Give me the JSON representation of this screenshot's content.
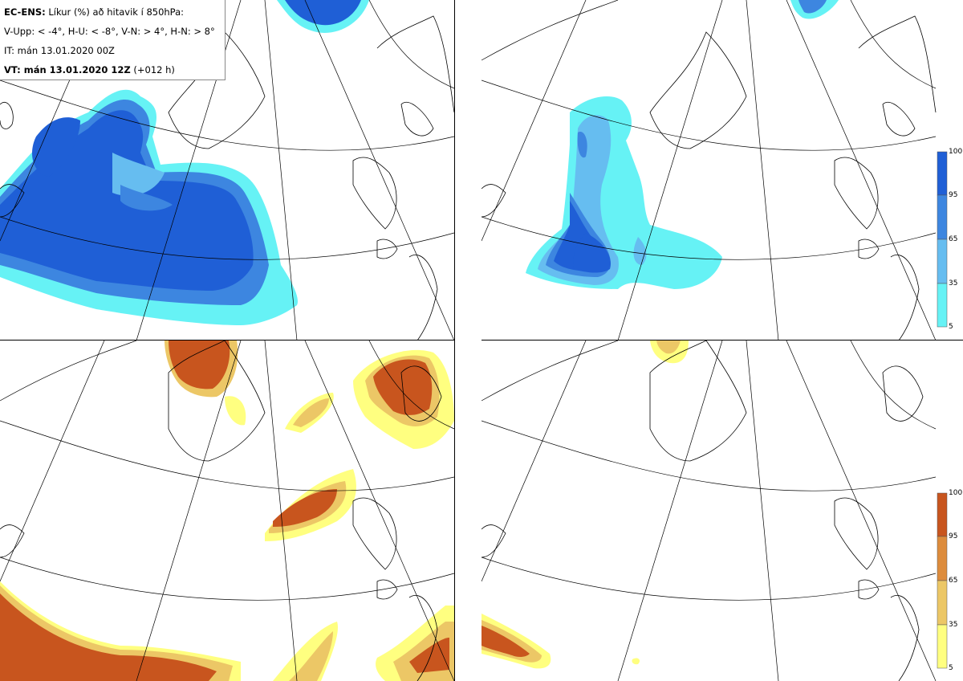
{
  "header": {
    "model": "EC-ENS:",
    "title_rest": " Líkur (%) að hitavik í 850hPa:",
    "thresholds": "V-Upp: < -4°, H-U: < -8°, V-N: > 4°, H-N: > 8°",
    "init_time": "IT: mán 13.01.2020 00Z",
    "valid_prefix": "VT: mán 13.01.2020 12Z",
    "valid_suffix": " (+012 h)"
  },
  "panels": [
    {
      "id": "V-Upp",
      "condition": "< -4°",
      "palette": "blue"
    },
    {
      "id": "H-U",
      "condition": "< -8°",
      "palette": "blue"
    },
    {
      "id": "V-N",
      "condition": "> 4°",
      "palette": "orange"
    },
    {
      "id": "H-N",
      "condition": "> 8°",
      "palette": "orange"
    }
  ],
  "colorbars": {
    "blue": {
      "ticks": [
        "100",
        "95",
        "65",
        "35",
        "5"
      ],
      "colors": [
        "#1f5fd6",
        "#3d86e0",
        "#66bdf0",
        "#66f2f5"
      ]
    },
    "orange": {
      "ticks": [
        "100",
        "95",
        "65",
        "35",
        "5"
      ],
      "colors": [
        "#c8551e",
        "#dd8c3c",
        "#ecc766",
        "#ffff80"
      ]
    }
  }
}
